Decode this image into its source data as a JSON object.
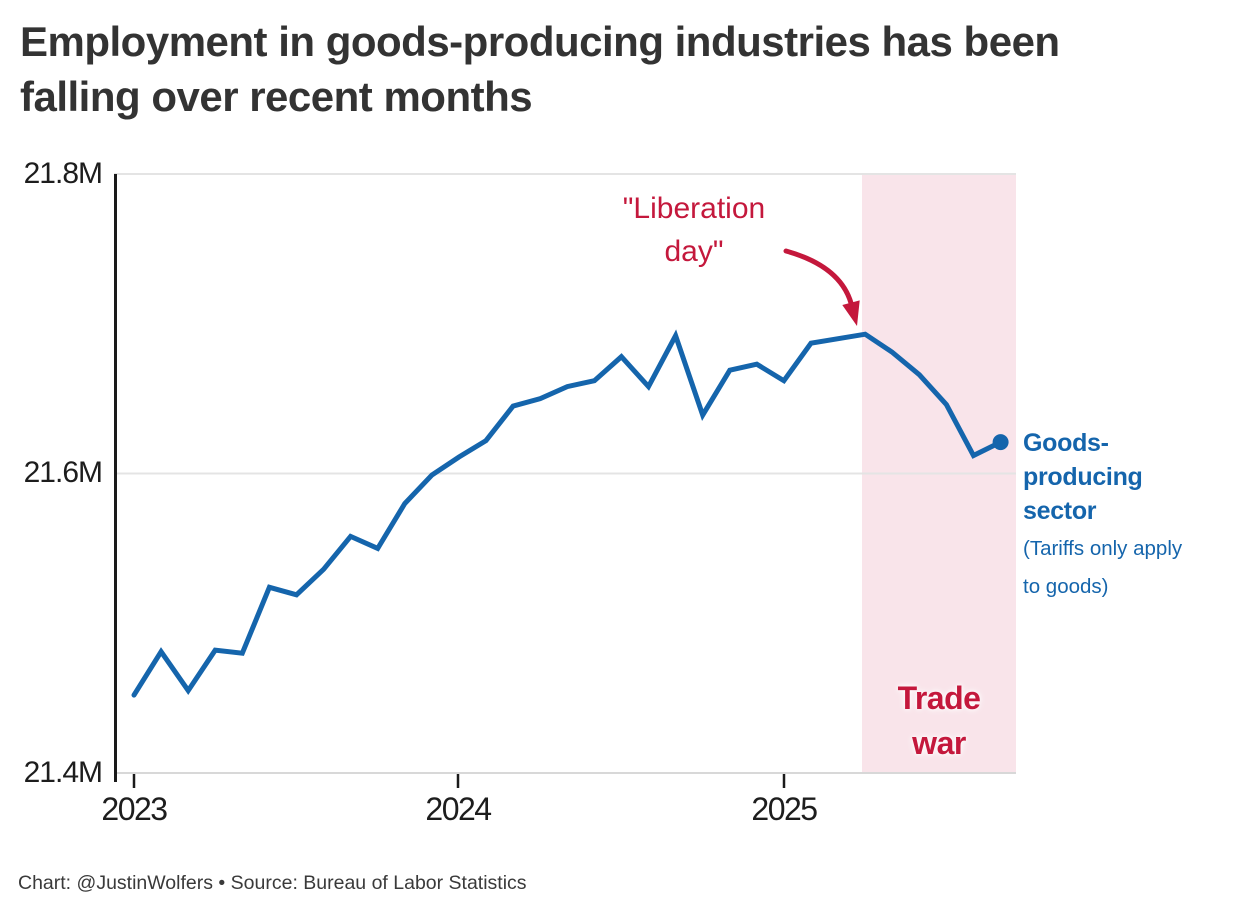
{
  "header": {
    "title_lines": [
      "Employment in goods-producing industries has been",
      "falling over recent months"
    ]
  },
  "footer": {
    "credit": "Chart: @JustinWolfers • Source: Bureau of Labor Statistics"
  },
  "chart_data": {
    "type": "line",
    "title": "Employment in goods-producing industries has been falling over recent months",
    "xlabel": "",
    "ylabel": "",
    "unit": "millions of employees",
    "ylim": [
      21.4,
      21.8
    ],
    "ytick_labels": [
      "21.4M",
      "21.6M",
      "21.8M"
    ],
    "ytick_values": [
      21.4,
      21.6,
      21.8
    ],
    "xtick_labels": [
      "2023",
      "2024",
      "2025"
    ],
    "grid": "horizontal",
    "x": [
      "Jan 2023",
      "Feb 2023",
      "Mar 2023",
      "Apr 2023",
      "May 2023",
      "Jun 2023",
      "Jul 2023",
      "Aug 2023",
      "Sep 2023",
      "Oct 2023",
      "Nov 2023",
      "Dec 2023",
      "Jan 2024",
      "Feb 2024",
      "Mar 2024",
      "Apr 2024",
      "May 2024",
      "Jun 2024",
      "Jul 2024",
      "Aug 2024",
      "Sep 2024",
      "Oct 2024",
      "Nov 2024",
      "Dec 2024",
      "Jan 2025",
      "Feb 2025",
      "Mar 2025",
      "Apr 2025",
      "May 2025",
      "Jun 2025",
      "Jul 2025",
      "Aug 2025",
      "Sep 2025"
    ],
    "series": [
      {
        "name": "Goods-producing sector",
        "color": "#1565ac",
        "end_dot": true,
        "values": [
          21.452,
          21.481,
          21.455,
          21.482,
          21.48,
          21.524,
          21.519,
          21.536,
          21.558,
          21.55,
          21.58,
          21.599,
          21.611,
          21.622,
          21.645,
          21.65,
          21.658,
          21.662,
          21.678,
          21.658,
          21.692,
          21.639,
          21.669,
          21.673,
          21.662,
          21.687,
          21.69,
          21.693,
          21.681,
          21.666,
          21.646,
          21.612,
          21.621
        ]
      }
    ],
    "shaded_region": {
      "from": "Apr 2025",
      "to_end_of_chart": true,
      "color": "#f9e4ea",
      "label": "Trade war",
      "label_lines": [
        "Trade",
        "war"
      ],
      "label_color": "#c4183c"
    },
    "annotations": {
      "liberation_day": {
        "text": "\"Liberation day\"",
        "lines": [
          "\"Liberation",
          "day\""
        ],
        "color": "#c4183c",
        "arrow_target": "Apr 2025"
      },
      "series_label": {
        "title_lines": [
          "Goods-",
          "producing",
          "sector"
        ],
        "note_lines": [
          "(Tariffs only apply",
          "to goods)"
        ],
        "color": "#1565ac"
      }
    }
  }
}
